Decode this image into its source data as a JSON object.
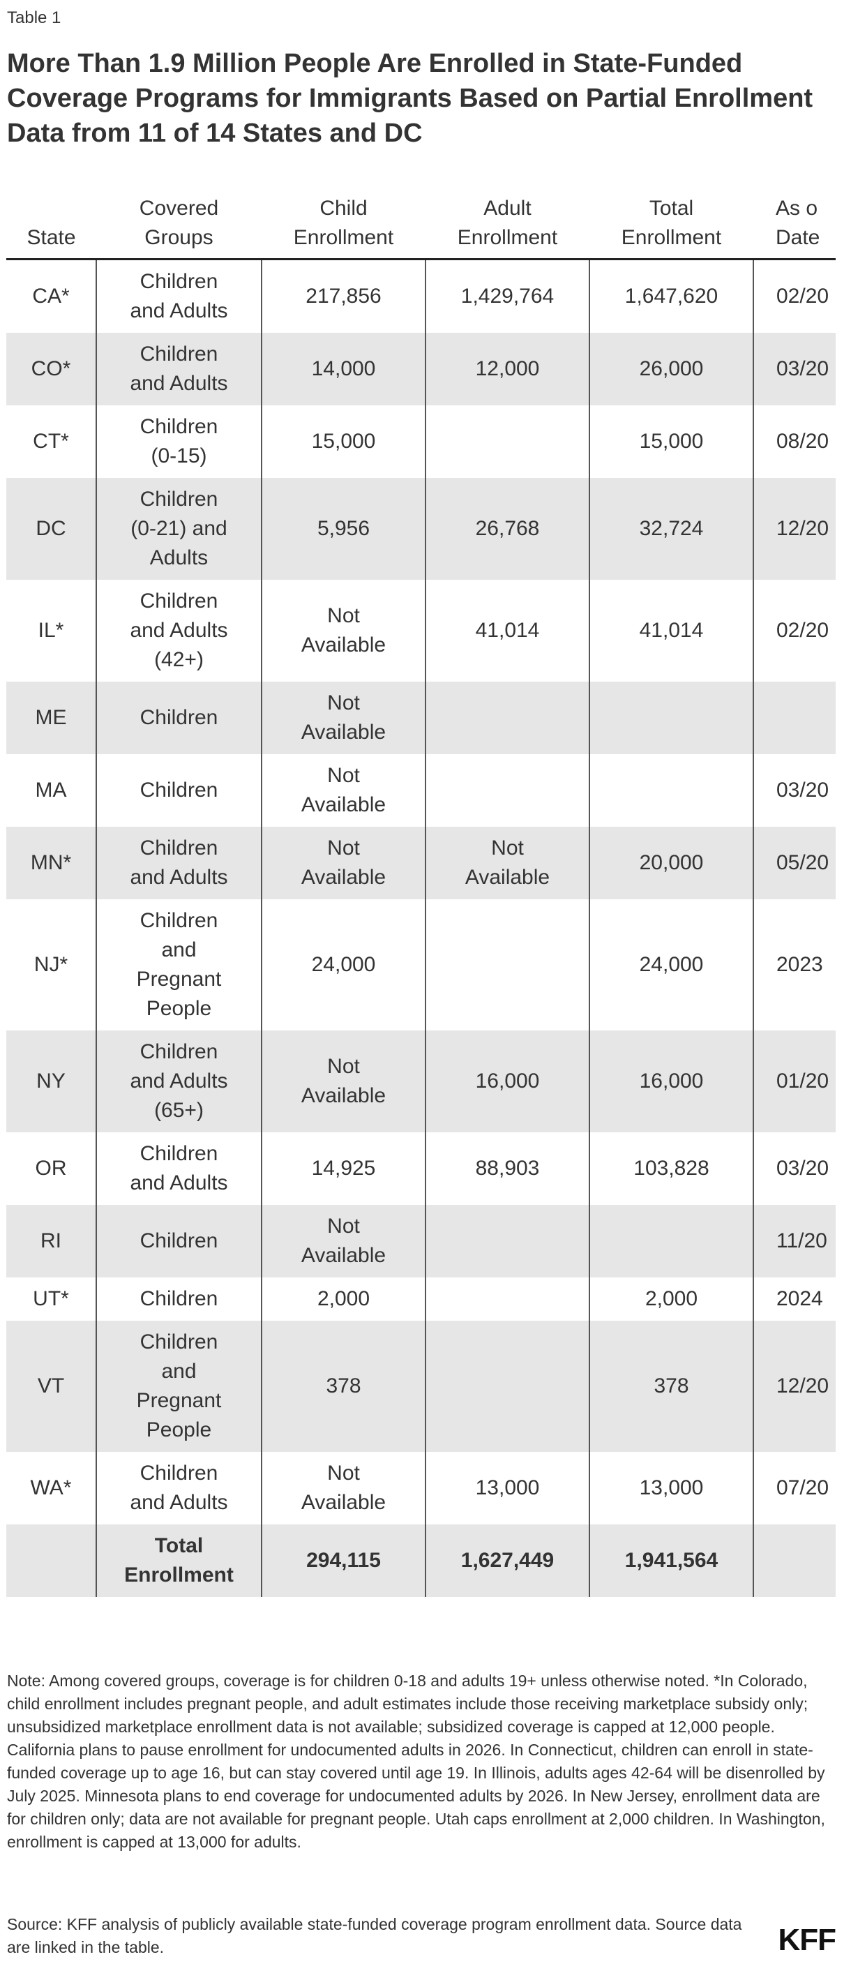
{
  "header": {
    "label": "Table 1",
    "title": "More Than 1.9 Million People Are Enrolled in State-Funded Coverage Programs for Immigrants Based on Partial Enrollment Data from 11 of 14 States and DC"
  },
  "table": {
    "columns": [
      "State",
      "Covered\nGroups",
      "Child\nEnrollment",
      "Adult\nEnrollment",
      "Total\nEnrollment",
      "As o\nDate"
    ],
    "rows": [
      [
        "CA*",
        "Children\nand Adults",
        "217,856",
        "1,429,764",
        "1,647,620",
        "02/20"
      ],
      [
        "CO*",
        "Children\nand Adults",
        "14,000",
        "12,000",
        "26,000",
        "03/20"
      ],
      [
        "CT*",
        "Children\n(0-15)",
        "15,000",
        null,
        "15,000",
        "08/20"
      ],
      [
        "DC",
        "Children\n(0-21) and\nAdults",
        "5,956",
        "26,768",
        "32,724",
        "12/20"
      ],
      [
        "IL*",
        "Children\nand Adults\n(42+)",
        "Not\nAvailable",
        "41,014",
        "41,014",
        "02/20"
      ],
      [
        "ME",
        "Children",
        "Not\nAvailable",
        null,
        null,
        null
      ],
      [
        "MA",
        "Children",
        "Not\nAvailable",
        null,
        null,
        "03/20"
      ],
      [
        "MN*",
        "Children\nand Adults",
        "Not\nAvailable",
        "Not\nAvailable",
        "20,000",
        "05/20"
      ],
      [
        "NJ*",
        "Children\nand\nPregnant\nPeople",
        "24,000",
        null,
        "24,000",
        "2023"
      ],
      [
        "NY",
        "Children\nand Adults\n(65+)",
        "Not\nAvailable",
        "16,000",
        "16,000",
        "01/20"
      ],
      [
        "OR",
        "Children\nand Adults",
        "14,925",
        "88,903",
        "103,828",
        "03/20"
      ],
      [
        "RI",
        "Children",
        "Not\nAvailable",
        null,
        null,
        "11/20"
      ],
      [
        "UT*",
        "Children",
        "2,000",
        null,
        "2,000",
        "2024"
      ],
      [
        "VT",
        "Children\nand\nPregnant\nPeople",
        "378",
        null,
        "378",
        "12/20"
      ],
      [
        "WA*",
        "Children\nand Adults",
        "Not\nAvailable",
        "13,000",
        "13,000",
        "07/20"
      ]
    ],
    "total": [
      null,
      "Total\nEnrollment",
      "294,115",
      "1,627,449",
      "1,941,564",
      null
    ]
  },
  "footer": {
    "note": "Note: Among covered groups, coverage is for children 0-18 and adults 19+ unless otherwise noted. *In Colorado, child enrollment includes pregnant people, and adult estimates include those receiving marketplace subsidy only; unsubsidized marketplace enrollment data is not available; subsidized coverage is capped at 12,000 people. California plans to pause enrollment for undocumented adults in 2026. In Connecticut, children can enroll in state-funded coverage up to age 16, but can stay covered until age 19. In Illinois, adults ages 42-64 will be disenrolled by July 2025. Minnesota plans to end coverage for undocumented adults by 2026. In New Jersey, enrollment data are for children only; data are not available for pregnant people. Utah caps enrollment at 2,000 children. In Washington, enrollment is capped at 13,000 for adults.",
    "source": "Source: KFF analysis of publicly available state-funded coverage program enrollment data. Source data are linked in the table.",
    "logo": "KFF"
  }
}
